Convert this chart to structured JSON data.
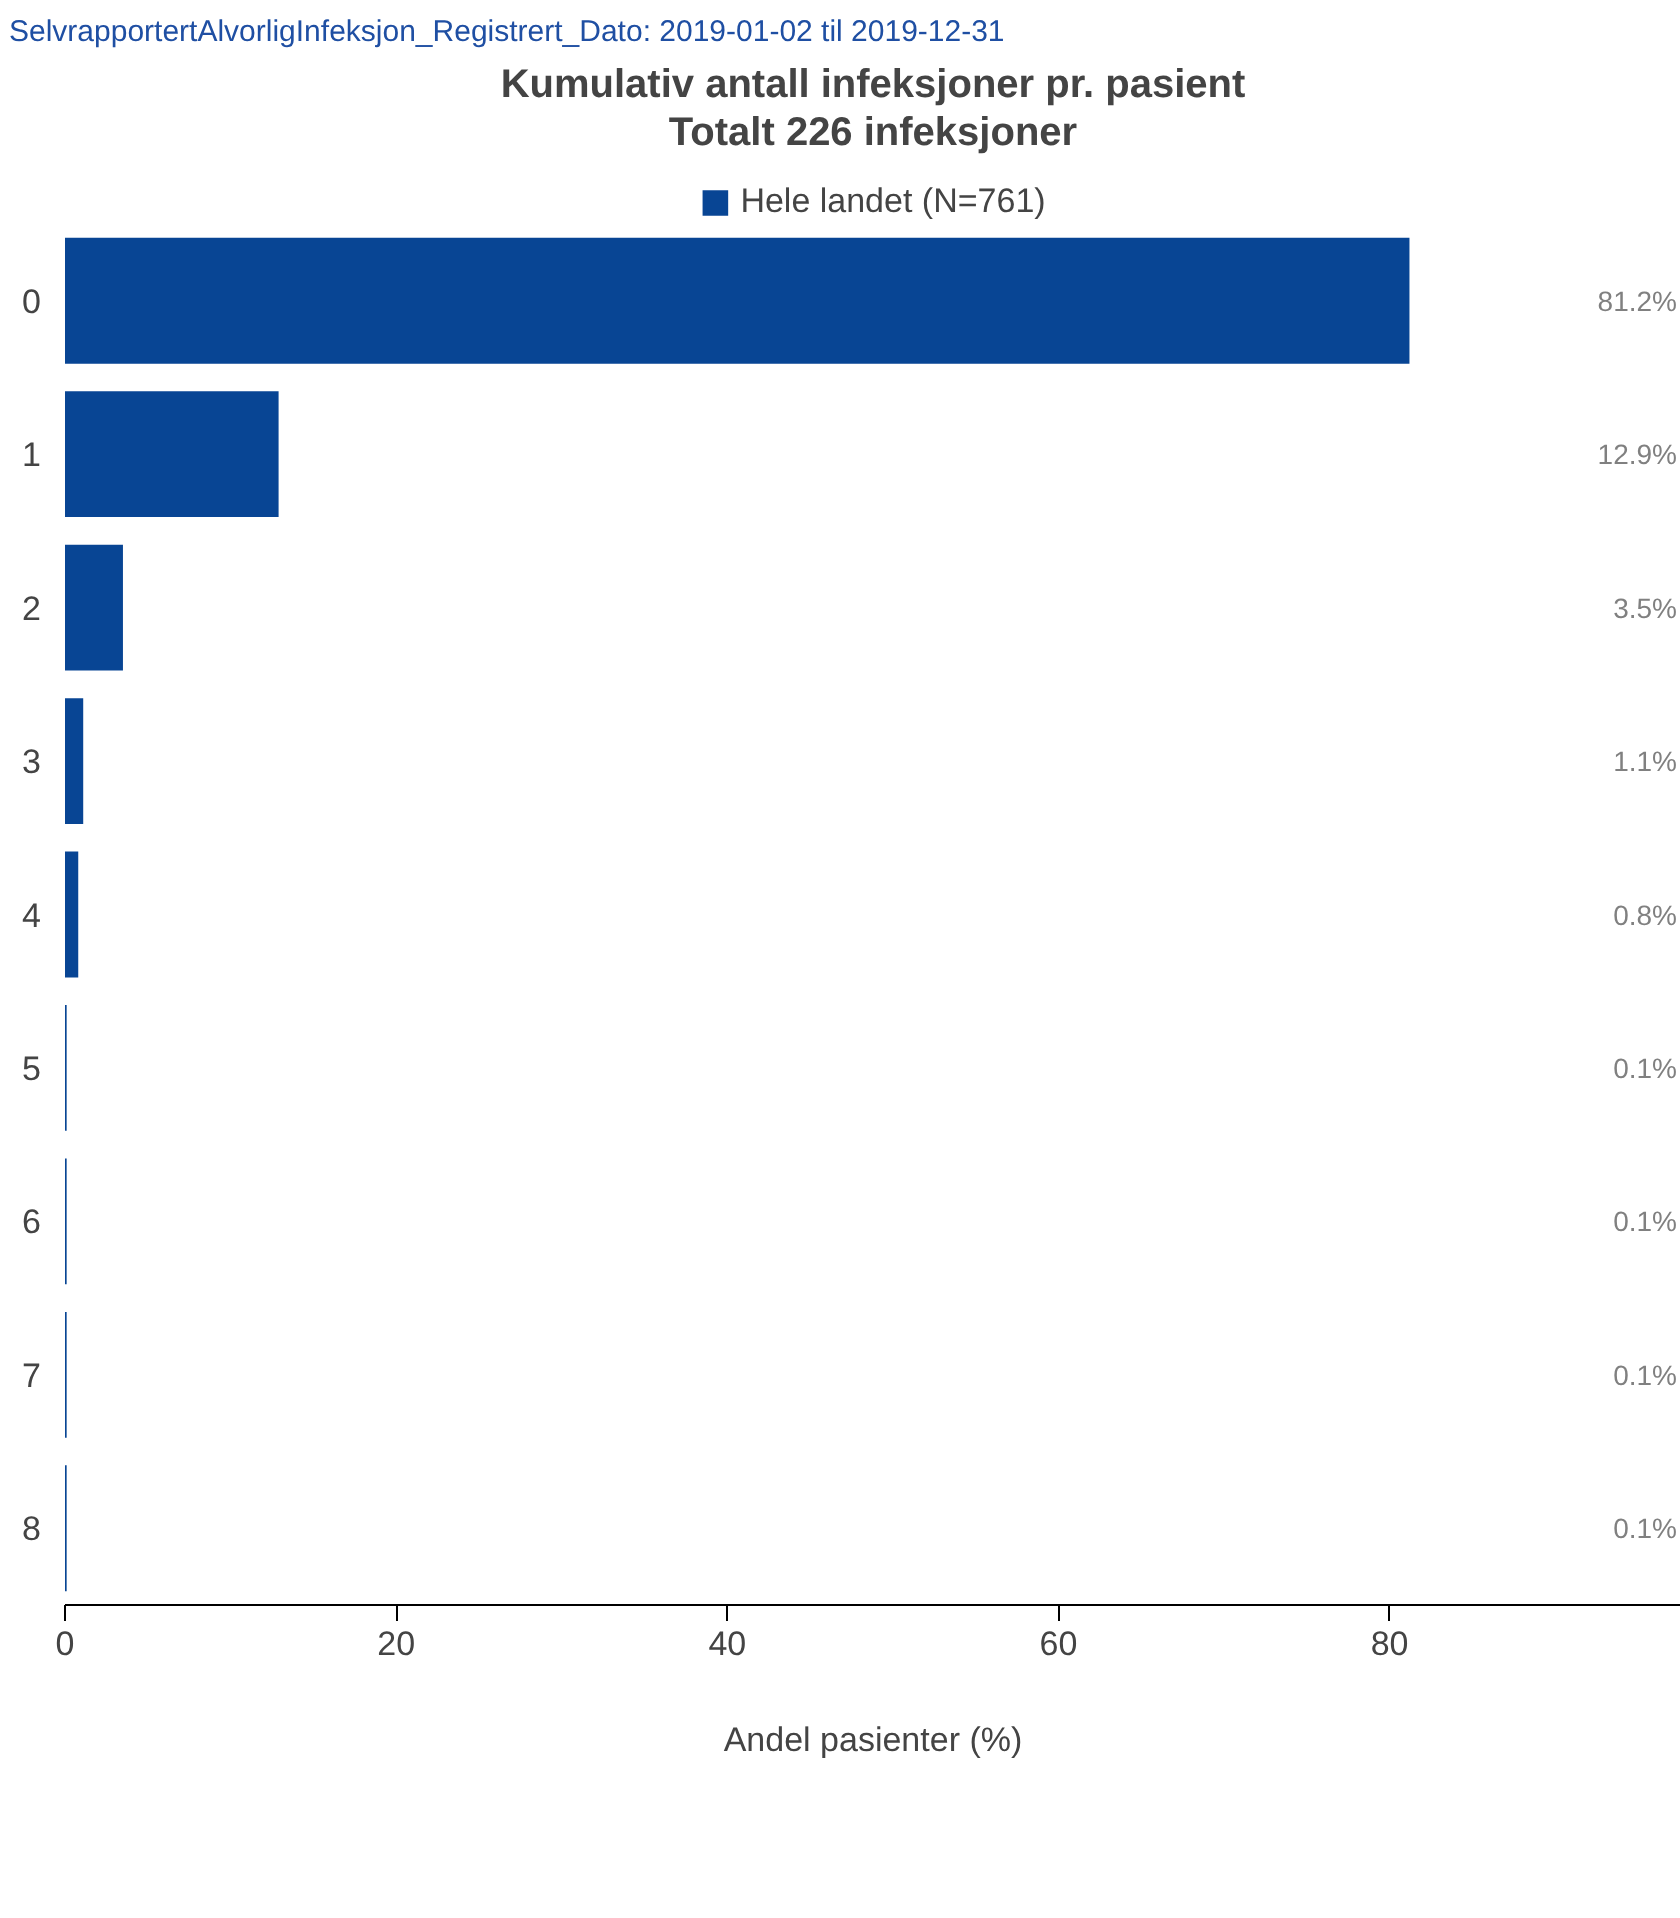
{
  "chart_data": {
    "type": "bar",
    "orientation": "horizontal",
    "title": "Kumulativ antall infeksjoner pr. pasient",
    "subtitle": "Totalt 226 infeksjoner",
    "annotations": [
      "SelvrapportertAlvorligInfeksjon_Registrert_Dato: 2019-01-02 til 2019-12-31"
    ],
    "xlabel": "Andel pasienter (%)",
    "categories": [
      "0",
      "1",
      "2",
      "3",
      "4",
      "5",
      "6",
      "7",
      "8"
    ],
    "series": [
      {
        "name": "Hele landet (N=761)",
        "color": "#084594",
        "values": [
          81.2,
          12.9,
          3.5,
          1.1,
          0.8,
          0.1,
          0.1,
          0.1,
          0.1
        ]
      }
    ],
    "value_labels": [
      "81.2%",
      "12.9%",
      "3.5%",
      "1.1%",
      "0.8%",
      "0.1%",
      "0.1%",
      "0.1%",
      "0.1%"
    ],
    "xlim": [
      0,
      97.6
    ],
    "xticks": [
      0,
      20,
      40,
      60,
      80
    ],
    "grid": false,
    "legend": "top"
  }
}
